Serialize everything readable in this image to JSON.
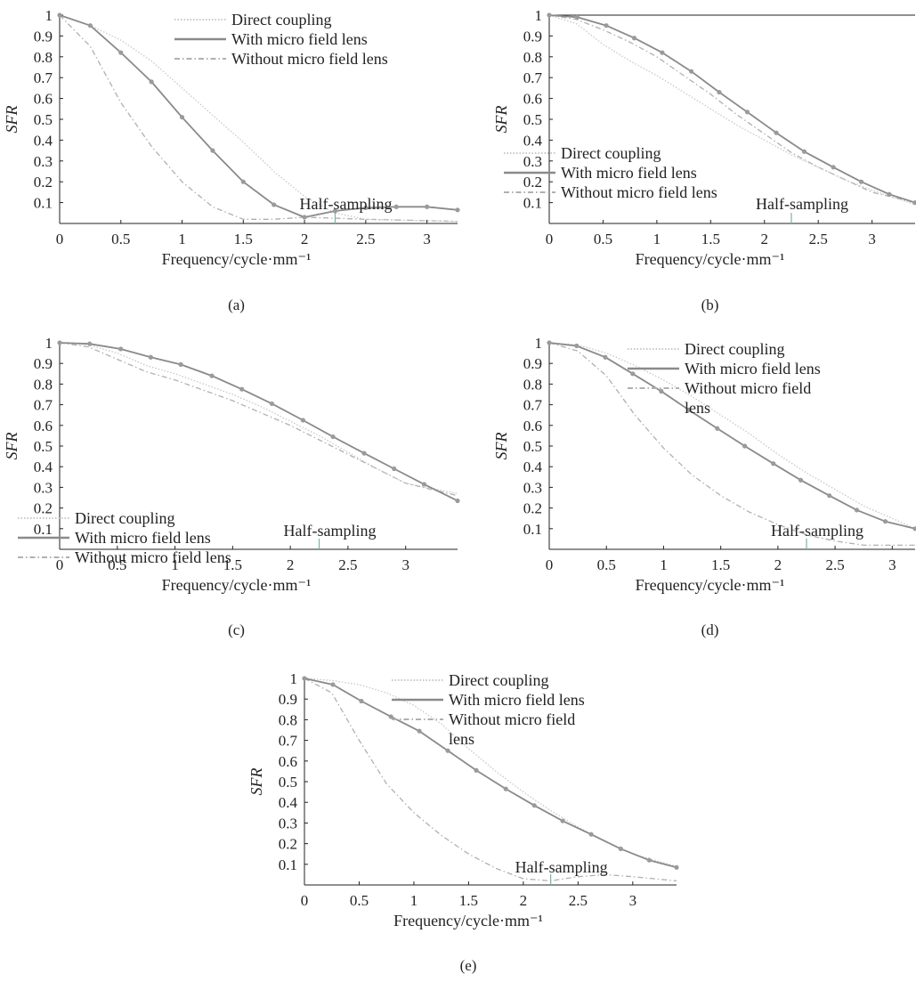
{
  "colors": {
    "direct": "#c8c8c8",
    "with": "#8a8a8a",
    "without": "#b0b0b0",
    "marker": "#9a9a9a",
    "axis": "#222222",
    "half_sampling": "#7fb0a8"
  },
  "chart_data": [
    {
      "type": "line",
      "panel": "(a)",
      "xlabel": "Frequency/cycle·mm⁻¹",
      "ylabel": "SFR",
      "xlim": [
        0,
        3.25
      ],
      "ylim": [
        0,
        1
      ],
      "xticks": [
        "0",
        "0.5",
        "1",
        "1.5",
        "2",
        "2.5",
        "3"
      ],
      "yticks": [
        "0.1",
        "0.2",
        "0.3",
        "0.4",
        "0.5",
        "0.6",
        "0.7",
        "0.8",
        "0.9",
        "1"
      ],
      "legend": [
        "Direct coupling",
        "With micro field lens",
        "Without micro field lens"
      ],
      "legend_lines": [
        "Direct coupling",
        "With micro field lens",
        "Without micro field lens"
      ],
      "annotation": "Half-sampling",
      "half_sampling_x": 2.25,
      "series": [
        {
          "name": "Direct coupling",
          "style": "direct",
          "x": [
            0,
            0.25,
            0.5,
            0.75,
            1,
            1.25,
            1.5,
            1.75,
            2,
            2.25,
            2.5,
            3.25
          ],
          "y": [
            1,
            0.95,
            0.88,
            0.78,
            0.65,
            0.52,
            0.39,
            0.25,
            0.13,
            0.05,
            0.02,
            0.01
          ]
        },
        {
          "name": "With micro field lens",
          "style": "with",
          "markers": true,
          "x": [
            0,
            0.25,
            0.5,
            0.75,
            1,
            1.25,
            1.5,
            1.75,
            2,
            2.25,
            2.5,
            2.75,
            3,
            3.25
          ],
          "y": [
            1,
            0.95,
            0.82,
            0.68,
            0.51,
            0.35,
            0.2,
            0.09,
            0.03,
            0.06,
            0.075,
            0.08,
            0.08,
            0.065
          ]
        },
        {
          "name": "Without micro field lens",
          "style": "without",
          "x": [
            0,
            0.25,
            0.5,
            0.75,
            1,
            1.25,
            1.5,
            1.75,
            2,
            2.5,
            3.25
          ],
          "y": [
            1,
            0.85,
            0.58,
            0.37,
            0.2,
            0.08,
            0.02,
            0.02,
            0.03,
            0.02,
            0.01
          ]
        }
      ]
    },
    {
      "type": "line",
      "panel": "(b)",
      "xlabel": "Frequency/cycle·mm⁻¹",
      "ylabel": "SFR",
      "xlim": [
        0,
        3.4
      ],
      "ylim": [
        0,
        1
      ],
      "xticks": [
        "0",
        "0.5",
        "1",
        "1.5",
        "2",
        "2.5",
        "3"
      ],
      "yticks": [
        "0.1",
        "0.2",
        "0.3",
        "0.4",
        "0.5",
        "0.6",
        "0.7",
        "0.8",
        "0.9",
        "1"
      ],
      "legend": [
        "Direct coupling",
        "With micro field lens",
        "Without micro field lens"
      ],
      "legend_lines": [
        "Direct coupling",
        "With micro field lens",
        "Without micro field lens"
      ],
      "annotation": "Half-sampling",
      "half_sampling_x": 2.25,
      "series": [
        {
          "name": "Direct coupling",
          "style": "direct",
          "x": [
            0,
            0.25,
            0.5,
            0.75,
            1,
            1.25,
            1.5,
            1.75,
            2,
            2.25,
            2.5,
            2.75,
            3,
            3.4
          ],
          "y": [
            1,
            0.96,
            0.86,
            0.78,
            0.71,
            0.63,
            0.55,
            0.47,
            0.4,
            0.33,
            0.27,
            0.21,
            0.16,
            0.09
          ]
        },
        {
          "name": "With micro field lens",
          "style": "with",
          "markers": true,
          "x": [
            0,
            0.26,
            0.53,
            0.79,
            1.05,
            1.32,
            1.58,
            1.84,
            2.11,
            2.37,
            2.64,
            2.9,
            3.16,
            3.4
          ],
          "y": [
            1,
            0.99,
            0.95,
            0.89,
            0.82,
            0.73,
            0.63,
            0.535,
            0.435,
            0.345,
            0.27,
            0.2,
            0.14,
            0.1
          ]
        },
        {
          "name": "Without micro field lens",
          "style": "without",
          "x": [
            0,
            0.25,
            0.5,
            0.75,
            1,
            1.25,
            1.5,
            1.75,
            2,
            2.25,
            2.5,
            2.75,
            3,
            3.4
          ],
          "y": [
            1,
            0.98,
            0.93,
            0.87,
            0.8,
            0.71,
            0.62,
            0.52,
            0.43,
            0.34,
            0.27,
            0.21,
            0.15,
            0.1
          ]
        }
      ]
    },
    {
      "type": "line",
      "panel": "(c)",
      "xlabel": "Frequency/cycle·mm⁻¹",
      "ylabel": "SFR",
      "xlim": [
        0,
        3.45
      ],
      "ylim": [
        0,
        1
      ],
      "xticks": [
        "0",
        "0.5",
        "1",
        "1.5",
        "2",
        "2.5",
        "3"
      ],
      "yticks": [
        "0.1",
        "0.2",
        "0.3",
        "0.4",
        "0.5",
        "0.6",
        "0.7",
        "0.8",
        "0.9",
        "1"
      ],
      "legend": [
        "Direct coupling",
        "With micro field lens",
        "Without micro field lens"
      ],
      "legend_lines": [
        "Direct coupling",
        "With micro field lens",
        "Without micro field lens"
      ],
      "annotation": "Half-sampling",
      "half_sampling_x": 2.25,
      "series": [
        {
          "name": "Direct coupling",
          "style": "direct",
          "x": [
            0,
            0.25,
            0.5,
            0.75,
            1,
            1.25,
            1.5,
            1.75,
            2,
            2.25,
            2.5,
            2.75,
            3,
            3.45
          ],
          "y": [
            1,
            0.99,
            0.95,
            0.89,
            0.85,
            0.8,
            0.75,
            0.69,
            0.62,
            0.55,
            0.47,
            0.39,
            0.32,
            0.27
          ]
        },
        {
          "name": "With micro field lens",
          "style": "with",
          "markers": true,
          "x": [
            0,
            0.26,
            0.53,
            0.79,
            1.05,
            1.32,
            1.58,
            1.84,
            2.11,
            2.37,
            2.64,
            2.9,
            3.16,
            3.45
          ],
          "y": [
            1,
            0.995,
            0.97,
            0.93,
            0.895,
            0.84,
            0.775,
            0.705,
            0.625,
            0.545,
            0.465,
            0.39,
            0.315,
            0.235
          ]
        },
        {
          "name": "Without micro field lens",
          "style": "without",
          "x": [
            0,
            0.25,
            0.5,
            0.75,
            1,
            1.25,
            1.5,
            1.75,
            2,
            2.25,
            2.5,
            2.75,
            3,
            3.45
          ],
          "y": [
            1,
            0.98,
            0.92,
            0.86,
            0.82,
            0.77,
            0.72,
            0.66,
            0.6,
            0.53,
            0.46,
            0.39,
            0.32,
            0.26
          ]
        }
      ]
    },
    {
      "type": "line",
      "panel": "(d)",
      "xlabel": "Frequency/cycle·mm⁻¹",
      "ylabel": "SFR",
      "xlim": [
        0,
        3.2
      ],
      "ylim": [
        0,
        1
      ],
      "xticks": [
        "0",
        "0.5",
        "1",
        "1.5",
        "2",
        "2.5",
        "3"
      ],
      "yticks": [
        "0.1",
        "0.2",
        "0.3",
        "0.4",
        "0.5",
        "0.6",
        "0.7",
        "0.8",
        "0.9",
        "1"
      ],
      "legend": [
        "Direct coupling",
        "With micro field lens",
        "Without micro field lens"
      ],
      "legend_lines": [
        "Direct coupling",
        "With micro field lens",
        "Without micro field",
        "lens"
      ],
      "annotation": "Half-sampling",
      "half_sampling_x": 2.25,
      "series": [
        {
          "name": "Direct coupling",
          "style": "direct",
          "x": [
            0,
            0.25,
            0.5,
            0.75,
            1,
            1.25,
            1.5,
            1.75,
            2,
            2.25,
            2.5,
            2.75,
            3,
            3.2
          ],
          "y": [
            1,
            0.99,
            0.95,
            0.89,
            0.82,
            0.74,
            0.65,
            0.56,
            0.46,
            0.37,
            0.29,
            0.21,
            0.15,
            0.1
          ]
        },
        {
          "name": "With micro field lens",
          "style": "with",
          "markers": true,
          "x": [
            0,
            0.24,
            0.49,
            0.73,
            0.98,
            1.22,
            1.47,
            1.71,
            1.96,
            2.2,
            2.45,
            2.69,
            2.94,
            3.2
          ],
          "y": [
            1,
            0.985,
            0.93,
            0.85,
            0.765,
            0.675,
            0.585,
            0.5,
            0.415,
            0.335,
            0.26,
            0.19,
            0.135,
            0.1
          ]
        },
        {
          "name": "Without micro field lens",
          "style": "without",
          "x": [
            0,
            0.25,
            0.5,
            0.75,
            1,
            1.25,
            1.5,
            1.75,
            2,
            2.25,
            2.5,
            2.75,
            3,
            3.2
          ],
          "y": [
            1,
            0.96,
            0.84,
            0.65,
            0.49,
            0.36,
            0.26,
            0.18,
            0.12,
            0.07,
            0.04,
            0.02,
            0.02,
            0.02
          ]
        }
      ]
    },
    {
      "type": "line",
      "panel": "(e)",
      "xlabel": "Frequency/cycle·mm⁻¹",
      "ylabel": "SFR",
      "xlim": [
        0,
        3.4
      ],
      "ylim": [
        0,
        1
      ],
      "xticks": [
        "0",
        "0.5",
        "1",
        "1.5",
        "2",
        "2.5",
        "3"
      ],
      "yticks": [
        "0.1",
        "0.2",
        "0.3",
        "0.4",
        "0.5",
        "0.6",
        "0.7",
        "0.8",
        "0.9",
        "1"
      ],
      "legend": [
        "Direct coupling",
        "With micro field lens",
        "Without micro field lens"
      ],
      "legend_lines": [
        "Direct coupling",
        "With micro field lens",
        "Without micro field",
        "lens"
      ],
      "annotation": "Half-sampling",
      "half_sampling_x": 2.25,
      "series": [
        {
          "name": "Direct coupling",
          "style": "direct",
          "x": [
            0,
            0.25,
            0.5,
            0.75,
            1,
            1.25,
            1.5,
            1.75,
            2,
            2.25,
            2.5,
            2.75,
            3,
            3.4
          ],
          "y": [
            1,
            0.99,
            0.97,
            0.93,
            0.87,
            0.78,
            0.66,
            0.55,
            0.45,
            0.36,
            0.28,
            0.21,
            0.15,
            0.09
          ]
        },
        {
          "name": "With micro field lens",
          "style": "with",
          "markers": true,
          "x": [
            0,
            0.26,
            0.52,
            0.79,
            1.05,
            1.31,
            1.57,
            1.84,
            2.1,
            2.36,
            2.62,
            2.89,
            3.15,
            3.4
          ],
          "y": [
            1,
            0.97,
            0.89,
            0.815,
            0.745,
            0.65,
            0.555,
            0.465,
            0.385,
            0.31,
            0.245,
            0.175,
            0.12,
            0.085
          ]
        },
        {
          "name": "Without micro field lens",
          "style": "without",
          "x": [
            0,
            0.25,
            0.5,
            0.75,
            1,
            1.25,
            1.5,
            1.75,
            2,
            2.25,
            2.5,
            2.75,
            3,
            3.4
          ],
          "y": [
            1,
            0.93,
            0.7,
            0.49,
            0.35,
            0.24,
            0.15,
            0.08,
            0.03,
            0.02,
            0.04,
            0.05,
            0.04,
            0.02
          ]
        }
      ]
    }
  ]
}
